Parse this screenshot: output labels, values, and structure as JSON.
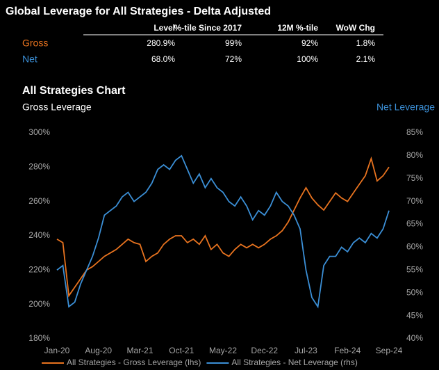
{
  "table": {
    "title": "Global Leverage for All Strategies - Delta Adjusted",
    "columns": [
      "Level",
      "%-tile Since 2017",
      "12M %-tile",
      "WoW Chg"
    ],
    "rows": [
      {
        "label": "Gross",
        "color": "#e8731f",
        "cells": [
          "280.9%",
          "99%",
          "92%",
          "1.8%"
        ]
      },
      {
        "label": "Net",
        "color": "#3b8fd6",
        "cells": [
          "68.0%",
          "72%",
          "100%",
          "2.1%"
        ]
      }
    ]
  },
  "chart_data": {
    "type": "line",
    "title": "All Strategies Chart",
    "ylabel": "Gross Leverage",
    "y2label": "Net Leverage",
    "categories": [
      "Jan-20",
      null,
      null,
      null,
      null,
      null,
      null,
      "Aug-20",
      null,
      null,
      null,
      null,
      null,
      null,
      "Mar-21",
      null,
      null,
      null,
      null,
      null,
      null,
      "Oct-21",
      null,
      null,
      null,
      null,
      null,
      null,
      "May-22",
      null,
      null,
      null,
      null,
      null,
      null,
      "Dec-22",
      null,
      null,
      null,
      null,
      null,
      null,
      "Jul-23",
      null,
      null,
      null,
      null,
      null,
      null,
      "Feb-24",
      null,
      null,
      null,
      null,
      null,
      null,
      "Sep-24"
    ],
    "series": [
      {
        "name": "All Strategies - Gross Leverage (lhs)",
        "color": "#e8731f",
        "axis": "y",
        "values": [
          238,
          236,
          205,
          210,
          215,
          220,
          222,
          225,
          228,
          230,
          232,
          235,
          238,
          236,
          235,
          225,
          228,
          230,
          235,
          238,
          240,
          240,
          236,
          238,
          235,
          240,
          232,
          235,
          230,
          228,
          232,
          235,
          233,
          235,
          233,
          235,
          238,
          240,
          243,
          248,
          255,
          262,
          268,
          262,
          258,
          255,
          260,
          265,
          262,
          260,
          265,
          270,
          275,
          285,
          272,
          275,
          280
        ]
      },
      {
        "name": "All Strategies - Net Leverage (rhs)",
        "color": "#3b8fd6",
        "axis": "y2",
        "values": [
          55,
          56,
          47,
          48,
          52,
          55,
          58,
          62,
          67,
          68,
          69,
          71,
          72,
          70,
          71,
          72,
          74,
          77,
          78,
          77,
          79,
          80,
          77,
          74,
          76,
          73,
          75,
          73,
          72,
          70,
          69,
          71,
          69,
          66,
          68,
          67,
          69,
          72,
          70,
          69,
          67,
          64,
          55,
          49,
          47,
          56,
          58,
          58,
          60,
          59,
          61,
          62,
          61,
          63,
          62,
          64,
          68
        ]
      }
    ],
    "ylim": [
      180,
      300
    ],
    "yticks": [
      {
        "value": 180,
        "label": "180%"
      },
      {
        "value": 200,
        "label": "200%"
      },
      {
        "value": 220,
        "label": "220%"
      },
      {
        "value": 240,
        "label": "240%"
      },
      {
        "value": 260,
        "label": "260%"
      },
      {
        "value": 280,
        "label": "280%"
      },
      {
        "value": 300,
        "label": "300%"
      }
    ],
    "y2lim": [
      40,
      85
    ],
    "y2ticks": [
      {
        "value": 40,
        "label": "40%"
      },
      {
        "value": 45,
        "label": "45%"
      },
      {
        "value": 50,
        "label": "50%"
      },
      {
        "value": 55,
        "label": "55%"
      },
      {
        "value": 60,
        "label": "60%"
      },
      {
        "value": 65,
        "label": "65%"
      },
      {
        "value": 70,
        "label": "70%"
      },
      {
        "value": 75,
        "label": "75%"
      },
      {
        "value": 80,
        "label": "80%"
      },
      {
        "value": 85,
        "label": "85%"
      }
    ],
    "grid": false
  }
}
